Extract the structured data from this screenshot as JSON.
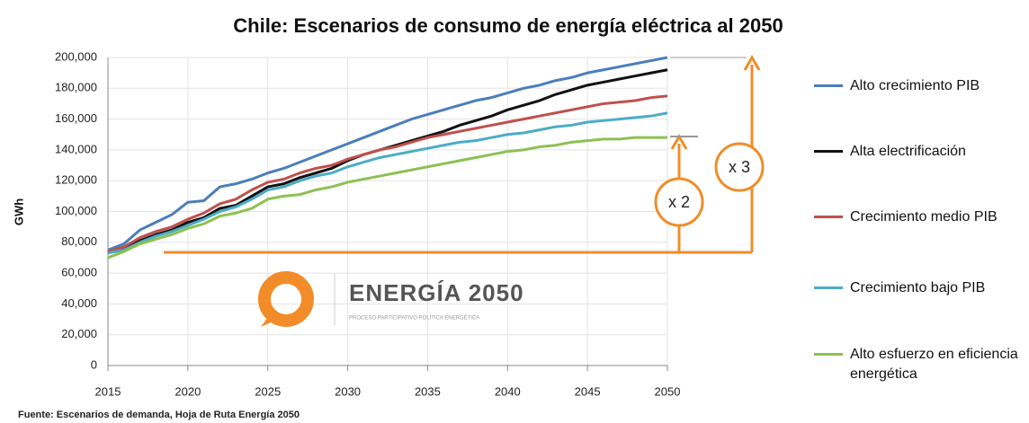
{
  "chart_data": {
    "type": "line",
    "title": "Chile: Escenarios de consumo de energía eléctrica al 2050",
    "y_label": "GWh",
    "source": "Fuente: Escenarios de demanda, Hoja de Ruta Energía 2050",
    "logo_title": "ENERGÍA 2050",
    "logo_subtitle": "PROCESO PARTICIPATIVO POLÍTICA ENERGÉTICA",
    "annotations": [
      "x 2",
      "x 3"
    ],
    "x": [
      2015,
      2016,
      2017,
      2018,
      2019,
      2020,
      2021,
      2022,
      2023,
      2024,
      2025,
      2026,
      2027,
      2028,
      2029,
      2030,
      2031,
      2032,
      2033,
      2034,
      2035,
      2036,
      2037,
      2038,
      2039,
      2040,
      2041,
      2042,
      2043,
      2044,
      2045,
      2046,
      2047,
      2048,
      2049,
      2050
    ],
    "xlim": [
      2015,
      2050
    ],
    "xticks": [
      2015,
      2020,
      2025,
      2030,
      2035,
      2040,
      2045,
      2050
    ],
    "ylim": [
      0,
      200000
    ],
    "yticks": [
      0,
      {
        "value": 20000,
        "label": "20,000"
      },
      {
        "value": 40000,
        "label": "40,000"
      },
      {
        "value": 60000,
        "label": "60,000"
      },
      {
        "value": 80000,
        "label": "80,000"
      },
      {
        "value": 100000,
        "label": "100,000"
      },
      {
        "value": 120000,
        "label": "120,000"
      },
      {
        "value": 140000,
        "label": "140,000"
      },
      {
        "value": 160000,
        "label": "160,000"
      },
      {
        "value": 180000,
        "label": "180,000"
      },
      {
        "value": 200000,
        "label": "200,000"
      }
    ],
    "grid": true,
    "series": [
      {
        "name": "Alto crecimiento PIB",
        "color": "#4a7ebb",
        "values": [
          75000,
          79000,
          88000,
          93000,
          98000,
          106000,
          107000,
          116000,
          118000,
          121000,
          125000,
          128000,
          132000,
          136000,
          140000,
          144000,
          148000,
          152000,
          156000,
          160000,
          163000,
          166000,
          169000,
          172000,
          174000,
          177000,
          180000,
          182000,
          185000,
          187000,
          190000,
          192000,
          194000,
          196000,
          198000,
          200000
        ]
      },
      {
        "name": "Alta electrificación",
        "color": "#111111",
        "values": [
          73000,
          76000,
          81000,
          85000,
          88000,
          93000,
          96000,
          102000,
          104000,
          110000,
          116000,
          118000,
          122000,
          125000,
          128000,
          133000,
          137000,
          140000,
          143000,
          146000,
          149000,
          152000,
          156000,
          159000,
          162000,
          166000,
          169000,
          172000,
          176000,
          179000,
          182000,
          184000,
          186000,
          188000,
          190000,
          192000
        ]
      },
      {
        "name": "Crecimiento medio PIB",
        "color": "#c0504d",
        "values": [
          74000,
          77000,
          83000,
          87000,
          90000,
          95000,
          99000,
          105000,
          108000,
          114000,
          119000,
          121000,
          125000,
          128000,
          130000,
          134000,
          137000,
          140000,
          142000,
          145000,
          148000,
          150000,
          152000,
          154000,
          156000,
          158000,
          160000,
          162000,
          164000,
          166000,
          168000,
          170000,
          171000,
          172000,
          174000,
          175000
        ]
      },
      {
        "name": "Crecimiento bajo PIB",
        "color": "#4bacc6",
        "values": [
          73000,
          75000,
          80000,
          84000,
          87000,
          91000,
          95000,
          100000,
          103000,
          108000,
          114000,
          116000,
          120000,
          123000,
          125000,
          129000,
          132000,
          135000,
          137000,
          139000,
          141000,
          143000,
          145000,
          146000,
          148000,
          150000,
          151000,
          153000,
          155000,
          156000,
          158000,
          159000,
          160000,
          161000,
          162000,
          164000
        ]
      },
      {
        "name": "Alto esfuerzo en eficiencia energética",
        "color": "#8cc152",
        "values": [
          70000,
          74000,
          79000,
          82000,
          85000,
          89000,
          92000,
          97000,
          99000,
          102000,
          108000,
          110000,
          111000,
          114000,
          116000,
          119000,
          121000,
          123000,
          125000,
          127000,
          129000,
          131000,
          133000,
          135000,
          137000,
          139000,
          140000,
          142000,
          143000,
          145000,
          146000,
          147000,
          147000,
          148000,
          148000,
          148000
        ]
      }
    ]
  }
}
